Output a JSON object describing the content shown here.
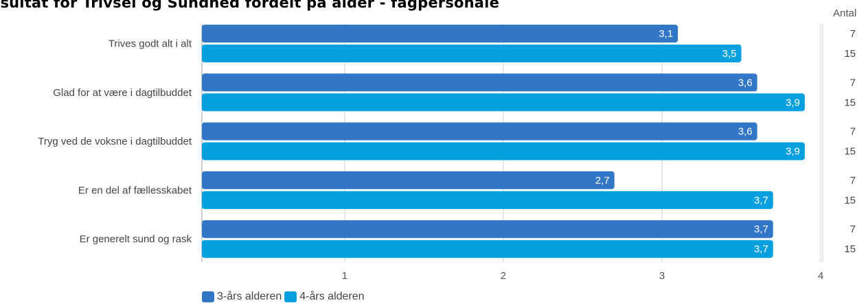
{
  "title": "esultat for Trivsel og Sundhed fordelt på alder - fagpersonale",
  "antal_header": "Antal",
  "colors": {
    "series_a": "#3176c7",
    "series_b": "#06a0e1",
    "grid": "#d0d0d0",
    "axis": "#9e9e9e"
  },
  "chart_data": {
    "type": "bar",
    "orientation": "horizontal",
    "categories": [
      "Trives godt alt i alt",
      "Glad for at være i dagtilbuddet",
      "Tryg ved de voksne i dagtilbuddet",
      "Er en del af fællesskabet",
      "Er generelt sund og rask"
    ],
    "series": [
      {
        "name": "3-års alderen",
        "values": [
          3.1,
          3.6,
          3.6,
          2.7,
          3.7
        ],
        "labels": [
          "3,1",
          "3,6",
          "3,6",
          "2,7",
          "3,7"
        ],
        "antal": [
          "7",
          "7",
          "7",
          "7",
          "7"
        ]
      },
      {
        "name": "4-års alderen",
        "values": [
          3.5,
          3.9,
          3.9,
          3.7,
          3.7
        ],
        "labels": [
          "3,5",
          "3,9",
          "3,9",
          "3,7",
          "3,7"
        ],
        "antal": [
          "15",
          "15",
          "15",
          "15",
          "15"
        ]
      }
    ],
    "xlim": [
      0.1,
      4
    ],
    "xticks": [
      1,
      2,
      3,
      4
    ],
    "xtick_labels": [
      "1",
      "2",
      "3",
      "4"
    ],
    "grid": true,
    "legend_position": "bottom-left"
  }
}
